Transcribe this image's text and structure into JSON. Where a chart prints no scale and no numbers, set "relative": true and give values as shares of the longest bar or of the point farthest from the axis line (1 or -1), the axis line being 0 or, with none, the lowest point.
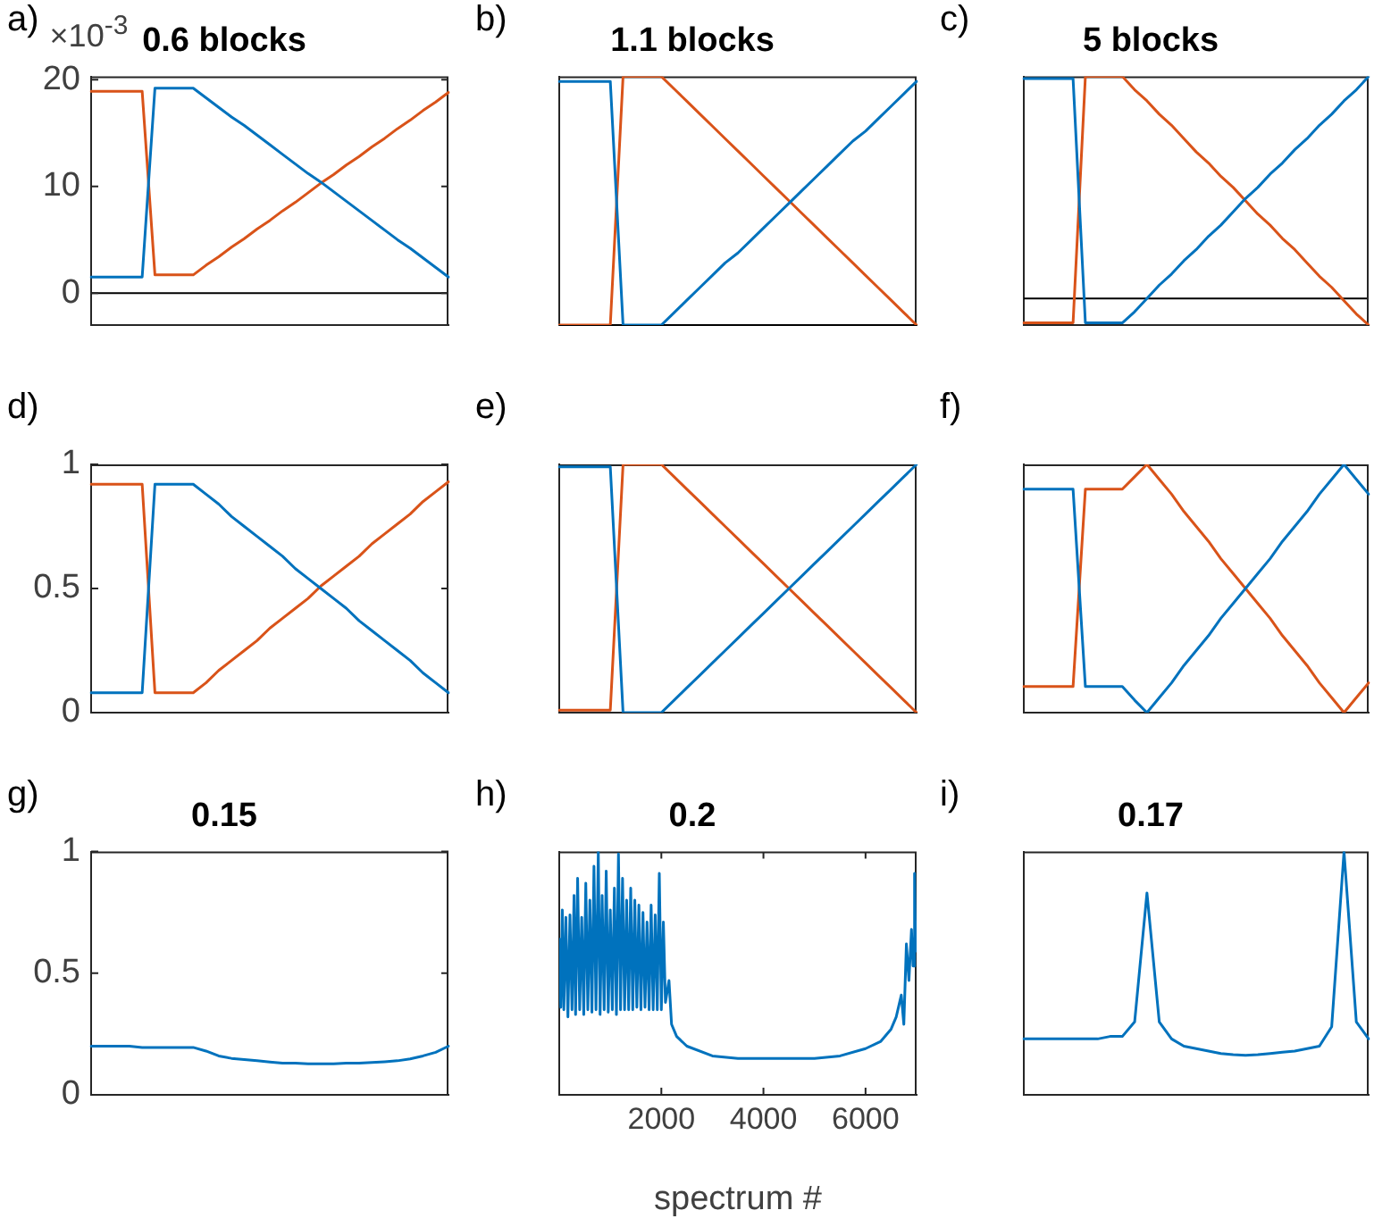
{
  "chart_data": [
    {
      "type": "line",
      "title": "0.6 blocks",
      "annotations": [
        "a)",
        "×10$^{-3}$"
      ],
      "categories": [
        null,
        null,
        null,
        null,
        null,
        null,
        null,
        null,
        null,
        null,
        null,
        null,
        null,
        null,
        null,
        null,
        null,
        null,
        null,
        null,
        null,
        null,
        null,
        null,
        null,
        null,
        null,
        null,
        null
      ],
      "ylim": [
        -3,
        20.3
      ],
      "yticks": [
        0,
        10,
        20
      ],
      "tick_labels": "y",
      "ref_lines": [
        {
          "axis": "y",
          "value": 0,
          "color": "#000000"
        }
      ],
      "series": [
        {
          "color": "#0072bd",
          "values": [
            1.5,
            1.5,
            1.5,
            1.5,
            1.5,
            19.2,
            19.2,
            19.2,
            19.2,
            18.3,
            17.4,
            16.5,
            15.7,
            14.8,
            13.9,
            13.0,
            12.1,
            11.2,
            10.4,
            9.5,
            8.6,
            7.7,
            6.8,
            5.9,
            5.0,
            4.2,
            3.3,
            2.4,
            1.5
          ]
        },
        {
          "color": "#d95319",
          "values": [
            18.9,
            18.9,
            18.9,
            18.9,
            18.9,
            1.7,
            1.7,
            1.7,
            1.7,
            2.6,
            3.4,
            4.3,
            5.1,
            6.0,
            6.8,
            7.7,
            8.5,
            9.4,
            10.3,
            11.1,
            12.0,
            12.8,
            13.7,
            14.5,
            15.4,
            16.2,
            17.1,
            17.9,
            18.8
          ]
        }
      ]
    },
    {
      "type": "line",
      "title": "1.1 blocks",
      "annotations": [
        "b)"
      ],
      "categories": [
        null,
        null,
        null,
        null,
        null,
        null,
        null,
        null,
        null,
        null,
        null,
        null,
        null,
        null,
        null,
        null,
        null,
        null,
        null,
        null,
        null,
        null,
        null,
        null,
        null,
        null,
        null,
        null,
        null
      ],
      "relative": true,
      "tick_labels": false,
      "ref_lines": [
        {
          "axis": "y",
          "value": 0,
          "color": "#000000"
        }
      ],
      "series": [
        {
          "color": "#0072bd",
          "values": [
            0.98,
            0.98,
            0.98,
            0.98,
            0.98,
            0,
            0,
            0,
            0,
            0.05,
            0.1,
            0.15,
            0.2,
            0.25,
            0.29,
            0.34,
            0.39,
            0.44,
            0.49,
            0.54,
            0.59,
            0.64,
            0.69,
            0.74,
            0.78,
            0.83,
            0.88,
            0.93,
            0.98
          ]
        },
        {
          "color": "#d95319",
          "values": [
            0,
            0,
            0,
            0,
            0,
            1,
            1,
            1,
            1,
            0.95,
            0.9,
            0.85,
            0.8,
            0.75,
            0.7,
            0.65,
            0.6,
            0.55,
            0.5,
            0.45,
            0.4,
            0.35,
            0.3,
            0.25,
            0.2,
            0.15,
            0.1,
            0.05,
            0
          ]
        }
      ]
    },
    {
      "type": "line",
      "title": "5 blocks",
      "annotations": [
        "c)"
      ],
      "categories": [
        null,
        null,
        null,
        null,
        null,
        null,
        null,
        null,
        null,
        null,
        null,
        null,
        null,
        null,
        null,
        null,
        null,
        null,
        null,
        null,
        null,
        null,
        null,
        null,
        null,
        null,
        null,
        null,
        null
      ],
      "relative": true,
      "tick_labels": false,
      "ref_lines": [
        {
          "axis": "y",
          "value": 0,
          "color": "#000000"
        }
      ],
      "series": [
        {
          "color": "#0072bd",
          "values": [
            0.99,
            0.99,
            0.99,
            0.99,
            0.99,
            -0.11,
            -0.11,
            -0.11,
            -0.11,
            -0.06,
            0,
            0.06,
            0.11,
            0.17,
            0.22,
            0.28,
            0.33,
            0.39,
            0.45,
            0.5,
            0.56,
            0.61,
            0.67,
            0.72,
            0.78,
            0.83,
            0.89,
            0.94,
            1
          ]
        },
        {
          "color": "#d95319",
          "values": [
            -0.11,
            -0.11,
            -0.11,
            -0.11,
            -0.11,
            1,
            1,
            1,
            1,
            0.94,
            0.89,
            0.83,
            0.78,
            0.72,
            0.66,
            0.61,
            0.55,
            0.5,
            0.44,
            0.38,
            0.33,
            0.27,
            0.22,
            0.16,
            0.1,
            0.05,
            -0.01,
            -0.07,
            -0.12
          ]
        }
      ]
    },
    {
      "type": "line",
      "annotations": [
        "d)"
      ],
      "categories": [
        null,
        null,
        null,
        null,
        null,
        null,
        null,
        null,
        null,
        null,
        null,
        null,
        null,
        null,
        null,
        null,
        null,
        null,
        null,
        null,
        null,
        null,
        null,
        null,
        null,
        null,
        null,
        null,
        null
      ],
      "ylim": [
        0,
        1
      ],
      "yticks": [
        0,
        0.5,
        1
      ],
      "tick_labels": "y",
      "series": [
        {
          "color": "#0072bd",
          "values": [
            0.08,
            0.08,
            0.08,
            0.08,
            0.08,
            0.92,
            0.92,
            0.92,
            0.92,
            0.88,
            0.84,
            0.79,
            0.75,
            0.71,
            0.67,
            0.63,
            0.58,
            0.54,
            0.5,
            0.46,
            0.42,
            0.37,
            0.33,
            0.29,
            0.25,
            0.21,
            0.16,
            0.12,
            0.08
          ]
        },
        {
          "color": "#d95319",
          "values": [
            0.92,
            0.92,
            0.92,
            0.92,
            0.92,
            0.08,
            0.08,
            0.08,
            0.08,
            0.12,
            0.17,
            0.21,
            0.25,
            0.29,
            0.34,
            0.38,
            0.42,
            0.46,
            0.51,
            0.55,
            0.59,
            0.63,
            0.68,
            0.72,
            0.76,
            0.8,
            0.85,
            0.89,
            0.93
          ]
        }
      ]
    },
    {
      "type": "line",
      "annotations": [
        "e)"
      ],
      "categories": [
        null,
        null,
        null,
        null,
        null,
        null,
        null,
        null,
        null,
        null,
        null,
        null,
        null,
        null,
        null,
        null,
        null,
        null,
        null,
        null,
        null,
        null,
        null,
        null,
        null,
        null,
        null,
        null,
        null
      ],
      "relative": true,
      "tick_labels": false,
      "series": [
        {
          "color": "#0072bd",
          "values": [
            0.99,
            0.99,
            0.99,
            0.99,
            0.99,
            0,
            0,
            0,
            0,
            0.05,
            0.1,
            0.15,
            0.2,
            0.25,
            0.3,
            0.35,
            0.4,
            0.45,
            0.5,
            0.55,
            0.6,
            0.65,
            0.7,
            0.75,
            0.8,
            0.85,
            0.9,
            0.95,
            1
          ]
        },
        {
          "color": "#d95319",
          "values": [
            0.01,
            0.01,
            0.01,
            0.01,
            0.01,
            1,
            1,
            1,
            1,
            0.95,
            0.9,
            0.85,
            0.8,
            0.75,
            0.7,
            0.65,
            0.6,
            0.55,
            0.5,
            0.45,
            0.4,
            0.35,
            0.3,
            0.25,
            0.2,
            0.15,
            0.1,
            0.05,
            0
          ]
        }
      ]
    },
    {
      "type": "line",
      "annotations": [
        "f)"
      ],
      "categories": [
        null,
        null,
        null,
        null,
        null,
        null,
        null,
        null,
        null,
        null,
        null,
        null,
        null,
        null,
        null,
        null,
        null,
        null,
        null,
        null,
        null,
        null,
        null,
        null,
        null,
        null,
        null,
        null,
        null
      ],
      "relative": true,
      "tick_labels": false,
      "series": [
        {
          "color": "#0072bd",
          "values": [
            0.9,
            0.9,
            0.9,
            0.9,
            0.9,
            0.105,
            0.105,
            0.105,
            0.105,
            0.05,
            0,
            0.06,
            0.12,
            0.19,
            0.25,
            0.31,
            0.38,
            0.44,
            0.5,
            0.56,
            0.62,
            0.69,
            0.75,
            0.81,
            0.88,
            0.94,
            1,
            0.94,
            0.88
          ]
        },
        {
          "color": "#d95319",
          "values": [
            0.105,
            0.105,
            0.105,
            0.105,
            0.105,
            0.9,
            0.9,
            0.9,
            0.9,
            0.95,
            1,
            0.94,
            0.88,
            0.81,
            0.75,
            0.69,
            0.62,
            0.56,
            0.5,
            0.44,
            0.38,
            0.31,
            0.25,
            0.19,
            0.12,
            0.06,
            0,
            0.06,
            0.12
          ]
        }
      ]
    },
    {
      "type": "line",
      "title": "0.15",
      "annotations": [
        "g)"
      ],
      "categories": [
        null,
        null,
        null,
        null,
        null,
        null,
        null,
        null,
        null,
        null,
        null,
        null,
        null,
        null,
        null,
        null,
        null,
        null,
        null,
        null,
        null,
        null,
        null,
        null,
        null,
        null,
        null,
        null,
        null
      ],
      "ylim": [
        0,
        1
      ],
      "yticks": [
        0,
        0.5,
        1
      ],
      "tick_labels": "y",
      "series": [
        {
          "color": "#0072bd",
          "values": [
            0.2,
            0.2,
            0.2,
            0.2,
            0.195,
            0.195,
            0.195,
            0.195,
            0.195,
            0.18,
            0.16,
            0.15,
            0.145,
            0.14,
            0.135,
            0.13,
            0.13,
            0.128,
            0.128,
            0.128,
            0.13,
            0.13,
            0.133,
            0.136,
            0.14,
            0.148,
            0.16,
            0.175,
            0.2
          ]
        }
      ]
    },
    {
      "type": "line",
      "title": "0.2",
      "xlabel": "spectrum #",
      "annotations": [
        "h)"
      ],
      "xlim": [
        0,
        7000
      ],
      "xticks": [
        2000,
        4000,
        6000
      ],
      "relative": true,
      "tick_labels": "x",
      "series": [
        {
          "color": "#0072bd",
          "x": [
            0,
            30,
            60,
            90,
            130,
            170,
            210,
            250,
            290,
            320,
            360,
            400,
            440,
            480,
            520,
            560,
            600,
            640,
            680,
            720,
            765,
            800,
            840,
            880,
            920,
            960,
            1000,
            1040,
            1080,
            1120,
            1160,
            1200,
            1240,
            1280,
            1320,
            1360,
            1400,
            1440,
            1480,
            1520,
            1560,
            1600,
            1640,
            1680,
            1720,
            1760,
            1800,
            1840,
            1880,
            1920,
            1960,
            2000,
            2040,
            2080,
            2150,
            2200,
            2300,
            2500,
            3000,
            3500,
            4000,
            4500,
            5000,
            5500,
            6000,
            6300,
            6500,
            6600,
            6700,
            6750,
            6800,
            6850,
            6900,
            6930,
            6960,
            6980,
            7000
          ],
          "values": [
            0.64,
            0.36,
            0.76,
            0.35,
            0.73,
            0.32,
            0.74,
            0.35,
            0.82,
            0.33,
            0.89,
            0.35,
            0.73,
            0.33,
            0.87,
            0.35,
            0.8,
            0.34,
            0.94,
            0.35,
            1,
            0.33,
            0.82,
            0.35,
            0.92,
            0.34,
            0.76,
            0.35,
            0.85,
            0.33,
            0.99,
            0.35,
            0.89,
            0.35,
            0.8,
            0.35,
            0.85,
            0.35,
            0.8,
            0.36,
            0.78,
            0.35,
            0.75,
            0.36,
            0.71,
            0.35,
            0.78,
            0.35,
            0.74,
            0.35,
            0.91,
            0.35,
            0.71,
            0.38,
            0.47,
            0.29,
            0.24,
            0.2,
            0.16,
            0.15,
            0.15,
            0.15,
            0.15,
            0.16,
            0.19,
            0.22,
            0.27,
            0.32,
            0.41,
            0.29,
            0.62,
            0.47,
            0.68,
            0.53,
            0.91,
            0.59,
            0.71
          ]
        }
      ]
    },
    {
      "type": "line",
      "title": "0.17",
      "annotations": [
        "i)"
      ],
      "categories": [
        null,
        null,
        null,
        null,
        null,
        null,
        null,
        null,
        null,
        null,
        null,
        null,
        null,
        null,
        null,
        null,
        null,
        null,
        null,
        null,
        null,
        null,
        null,
        null,
        null,
        null,
        null,
        null,
        null
      ],
      "relative": true,
      "tick_labels": false,
      "series": [
        {
          "color": "#0072bd",
          "values": [
            0.23,
            0.23,
            0.23,
            0.23,
            0.23,
            0.23,
            0.23,
            0.24,
            0.24,
            0.3,
            0.83,
            0.3,
            0.23,
            0.2,
            0.19,
            0.18,
            0.17,
            0.165,
            0.162,
            0.165,
            0.17,
            0.175,
            0.18,
            0.19,
            0.2,
            0.28,
            1,
            0.3,
            0.23
          ]
        }
      ]
    }
  ]
}
